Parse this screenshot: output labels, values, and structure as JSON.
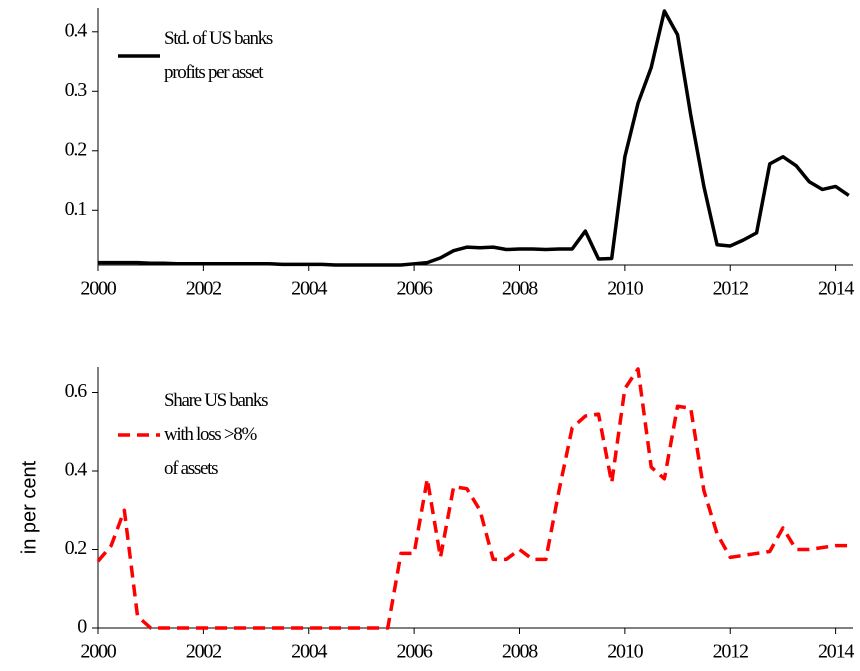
{
  "chart_data": [
    {
      "type": "line",
      "x": [
        2000,
        2000.25,
        2000.5,
        2000.75,
        2001,
        2001.25,
        2001.5,
        2001.75,
        2002,
        2002.25,
        2002.5,
        2002.75,
        2003,
        2003.25,
        2003.5,
        2003.75,
        2004,
        2004.25,
        2004.5,
        2004.75,
        2005,
        2005.25,
        2005.5,
        2005.75,
        2006,
        2006.25,
        2006.5,
        2006.75,
        2007,
        2007.25,
        2007.5,
        2007.75,
        2008,
        2008.25,
        2008.5,
        2008.75,
        2009,
        2009.25,
        2009.5,
        2009.75,
        2010,
        2010.25,
        2010.5,
        2010.75,
        2011,
        2011.25,
        2011.5,
        2011.75,
        2012,
        2012.25,
        2012.5,
        2012.75,
        2013,
        2013.25,
        2013.5,
        2013.75,
        2014,
        2014.25
      ],
      "series": [
        {
          "name": "Std. of US banks\nprofits per asset",
          "color": "#000000",
          "linestyle": "solid",
          "values": [
            0.012,
            0.012,
            0.012,
            0.012,
            0.011,
            0.011,
            0.01,
            0.01,
            0.01,
            0.01,
            0.01,
            0.01,
            0.01,
            0.01,
            0.009,
            0.009,
            0.009,
            0.009,
            0.008,
            0.008,
            0.008,
            0.008,
            0.008,
            0.008,
            0.01,
            0.012,
            0.02,
            0.032,
            0.038,
            0.037,
            0.038,
            0.034,
            0.035,
            0.035,
            0.034,
            0.035,
            0.035,
            0.065,
            0.018,
            0.019,
            0.19,
            0.28,
            0.34,
            0.435,
            0.395,
            0.26,
            0.14,
            0.042,
            0.04,
            0.05,
            0.062,
            0.178,
            0.19,
            0.175,
            0.148,
            0.135,
            0.14,
            0.125
          ]
        }
      ],
      "xlim": [
        2000,
        2014.33
      ],
      "xticks": [
        2000,
        2002,
        2004,
        2006,
        2008,
        2010,
        2012,
        2014
      ],
      "ylim": [
        0.008,
        0.44
      ],
      "yticks": [
        0.1,
        0.2,
        0.3,
        0.4
      ],
      "legend": "upper left"
    },
    {
      "type": "line",
      "y_label": "in per cent",
      "x": [
        2000,
        2000.25,
        2000.5,
        2000.75,
        2001,
        2001.25,
        2001.5,
        2001.75,
        2002,
        2002.25,
        2002.5,
        2002.75,
        2003,
        2003.25,
        2003.5,
        2003.75,
        2004,
        2004.25,
        2004.5,
        2004.75,
        2005,
        2005.25,
        2005.5,
        2005.75,
        2006,
        2006.25,
        2006.5,
        2006.75,
        2007,
        2007.25,
        2007.5,
        2007.75,
        2008,
        2008.25,
        2008.5,
        2008.75,
        2009,
        2009.25,
        2009.5,
        2009.75,
        2010,
        2010.25,
        2010.5,
        2010.75,
        2011,
        2011.25,
        2011.5,
        2011.75,
        2012,
        2012.25,
        2012.5,
        2012.75,
        2013,
        2013.25,
        2013.5,
        2013.75,
        2014,
        2014.25
      ],
      "series": [
        {
          "name": "Share US banks\nwith loss >8%\nof assets",
          "color": "#ff0000",
          "linestyle": "dashed",
          "values": [
            0.17,
            0.21,
            0.3,
            0.03,
            0,
            0,
            0,
            0,
            0,
            0,
            0,
            0,
            0,
            0,
            0,
            0,
            0,
            0,
            0,
            0,
            0,
            0,
            0,
            0.19,
            0.19,
            0.38,
            0.18,
            0.36,
            0.355,
            0.3,
            0.175,
            0.175,
            0.2,
            0.175,
            0.175,
            0.35,
            0.51,
            0.54,
            0.545,
            0.37,
            0.61,
            0.66,
            0.41,
            0.38,
            0.565,
            0.56,
            0.35,
            0.24,
            0.18,
            0.185,
            0.19,
            0.195,
            0.255,
            0.2,
            0.2,
            0.205,
            0.21,
            0.21
          ]
        }
      ],
      "xlim": [
        2000,
        2014.33
      ],
      "xticks": [
        2000,
        2002,
        2004,
        2006,
        2008,
        2010,
        2012,
        2014
      ],
      "ylim": [
        0,
        0.665
      ],
      "yticks": [
        0,
        0.2,
        0.4,
        0.6
      ],
      "legend": "upper left"
    }
  ]
}
